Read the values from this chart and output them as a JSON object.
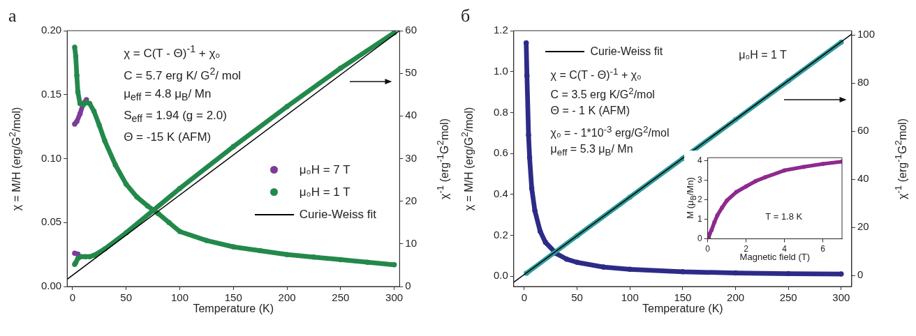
{
  "chart_data": [
    {
      "type": "line",
      "title": "а",
      "xlabel": "Temperature (K)",
      "ylabel": "χ = M/H (erg/G$^{2}$/mol)",
      "y2label": "χ$^{-1}$ (erg$^{-1}$G$^{2}$mol)",
      "annotations": [
        "χ = C(T - Θ)$^{-1}$ + χ₀",
        "C = 5.7 erg K/ G$^{2}$/ mol",
        "μ$_{eff}$ = 4.8 μ$_{B}$/ Mn",
        "S$_{eff}$ = 1.94 (g = 2.0)",
        "Θ = -15 K (AFM)"
      ],
      "xlim": [
        -5,
        305
      ],
      "xticks": [
        0,
        50,
        100,
        150,
        200,
        250,
        300
      ],
      "ylim": [
        0,
        0.2
      ],
      "yticks": [
        {
          "value": 0,
          "label": "0.00"
        },
        {
          "value": 0.05,
          "label": "0.05"
        },
        {
          "value": 0.1,
          "label": "0.10"
        },
        {
          "value": 0.15,
          "label": "0.15"
        },
        {
          "value": 0.2,
          "label": "0.20"
        }
      ],
      "y2lim": [
        0,
        60
      ],
      "y2ticks": [
        0,
        10,
        20,
        30,
        40,
        50,
        60
      ],
      "marker": "circle",
      "grid": false,
      "legend": "right",
      "series": [
        {
          "name": "μ₀H = 7 T",
          "color": "#7d3c98",
          "x": [
            2,
            4,
            7,
            10,
            13
          ],
          "values": [
            0.127,
            0.129,
            0.135,
            0.143,
            0.146
          ]
        },
        {
          "name": "μ₀H = 1 T",
          "color": "#23894b",
          "x": [
            2,
            3,
            4,
            5,
            7,
            10,
            13,
            16,
            20,
            25,
            30,
            40,
            50,
            60,
            70,
            80,
            90,
            100,
            125,
            150,
            175,
            200,
            225,
            250,
            275,
            300
          ],
          "values": [
            0.187,
            0.18,
            0.165,
            0.152,
            0.143,
            0.142,
            0.144,
            0.143,
            0.137,
            0.126,
            0.114,
            0.095,
            0.08,
            0.07,
            0.063,
            0.057,
            0.05,
            0.043,
            0.036,
            0.031,
            0.028,
            0.025,
            0.023,
            0.021,
            0.019,
            0.017
          ]
        },
        {
          "color": "#7d3c98",
          "axis": "y2",
          "x": [
            2,
            5
          ],
          "values": [
            7.8,
            7.6
          ]
        },
        {
          "color": "#23894b",
          "axis": "y2",
          "x": [
            2,
            3,
            5,
            8,
            12,
            16,
            20,
            30,
            50,
            75,
            100,
            150,
            200,
            250,
            300
          ],
          "values": [
            5.2,
            5.6,
            6.6,
            7,
            7,
            7,
            7.3,
            8.8,
            12.6,
            17.8,
            23,
            32.8,
            42.2,
            51.2,
            59.5
          ]
        },
        {
          "name": "Curie-Weiss fit",
          "type": "line",
          "marker": "none",
          "color": "#000000",
          "axis": "y2",
          "x": [
            -5,
            305
          ],
          "values": [
            1.7,
            60
          ]
        }
      ]
    },
    {
      "type": "line",
      "title": "б",
      "xlabel": "Temperature (K)",
      "ylabel": "χ = M/H (erg/G$^{2}$/mol)",
      "y2label": "χ$^{-1}$ (erg$^{-1}$G$^{2}$mol)",
      "annotations": [
        "χ = C(T - Θ)$^{-1}$ + χ₀",
        "C = 3.5 erg K/G$^{2}$/mol",
        "Θ = - 1 K (AFM)",
        "χ₀ = - 1*10$^{-3}$ erg/G$^{2}$/mol",
        "μ$_{eff}$ = 5.3 μ$_{B}$/ Mn",
        "μ₀H = 1 T"
      ],
      "xlim": [
        -10,
        310
      ],
      "xticks": [
        0,
        50,
        100,
        150,
        200,
        250,
        300
      ],
      "ylim": [
        -0.05,
        1.2
      ],
      "yticks": [
        {
          "value": 0,
          "label": "0.0"
        },
        {
          "value": 0.2,
          "label": "0.2"
        },
        {
          "value": 0.4,
          "label": "0.4"
        },
        {
          "value": 0.6,
          "label": "0.6"
        },
        {
          "value": 0.8,
          "label": "0.8"
        },
        {
          "value": 1,
          "label": "1.0"
        },
        {
          "value": 1.2,
          "label": "1.2"
        }
      ],
      "y2lim": [
        -4.6,
        101.8
      ],
      "y2ticks": [
        0,
        20,
        40,
        60,
        80,
        100
      ],
      "marker": "circle",
      "grid": false,
      "legend": "top left",
      "series": [
        {
          "color": "#2d2b87",
          "x": [
            1.8,
            2.5,
            4,
            5,
            7,
            10,
            15,
            20,
            30,
            40,
            50,
            75,
            100,
            150,
            200,
            250,
            300
          ],
          "values": [
            1.14,
            0.98,
            0.69,
            0.58,
            0.43,
            0.32,
            0.22,
            0.166,
            0.112,
            0.084,
            0.068,
            0.045,
            0.034,
            0.022,
            0.016,
            0.013,
            0.011
          ]
        },
        {
          "color": "#2f9c9a",
          "axis": "y2",
          "x": [
            2,
            50,
            100,
            150,
            200,
            250,
            300
          ],
          "values": [
            0.9,
            16.5,
            32.6,
            48.7,
            64.8,
            80.9,
            97
          ]
        },
        {
          "name": "Curie-Weiss fit",
          "type": "line",
          "marker": "none",
          "color": "#000000",
          "axis": "y2",
          "x": [
            -10,
            310
          ],
          "values": [
            -2.8,
            100.4
          ]
        }
      ]
    },
    {
      "type": "line",
      "xlabel": "Magnetic field (T)",
      "ylabel": "M (μ$_{B}$/Mn)",
      "annotations": [
        "T = 1.8 K"
      ],
      "xlim": [
        0,
        7
      ],
      "xticks": [
        0,
        2,
        4,
        6
      ],
      "ylim": [
        0,
        4.15
      ],
      "yticks": [
        0,
        1,
        2,
        3,
        4
      ],
      "marker": "circle",
      "grid": false,
      "series": [
        {
          "color": "#8e2a8e",
          "x": [
            0.05,
            0.1,
            0.2,
            0.35,
            0.5,
            0.75,
            1,
            1.5,
            2,
            2.5,
            3,
            4,
            5,
            6,
            7
          ],
          "values": [
            0.05,
            0.25,
            0.45,
            0.85,
            1.2,
            1.6,
            1.96,
            2.4,
            2.68,
            2.95,
            3.15,
            3.5,
            3.68,
            3.83,
            3.95
          ]
        }
      ]
    }
  ]
}
